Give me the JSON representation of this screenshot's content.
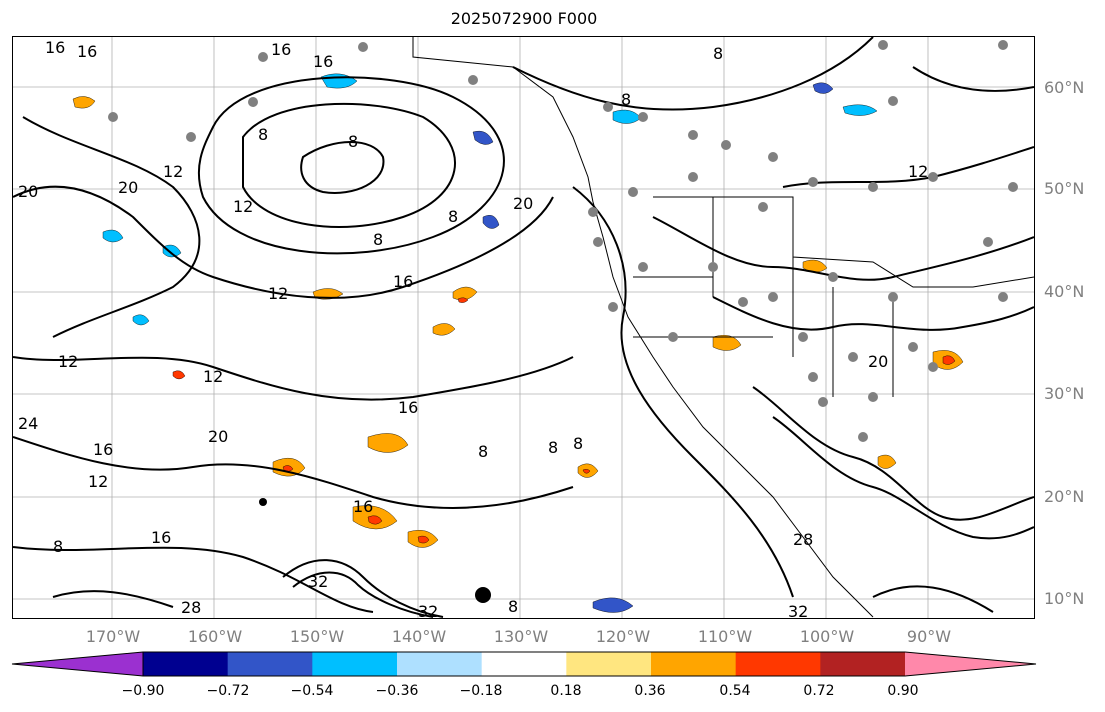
{
  "title": "2025072900 F000",
  "lat_labels": [
    "60°N",
    "50°N",
    "40°N",
    "30°N",
    "20°N",
    "10°N"
  ],
  "lon_labels": [
    "170°W",
    "160°W",
    "150°W",
    "140°W",
    "130°W",
    "120°W",
    "110°W",
    "100°W",
    "90°W"
  ],
  "colorbar": {
    "ticks": [
      "−0.90",
      "−0.72",
      "−0.54",
      "−0.36",
      "−0.18",
      "0.18",
      "0.36",
      "0.54",
      "0.72",
      "0.90"
    ],
    "colors": [
      "#9b30d0",
      "#000090",
      "#3255c8",
      "#00bfff",
      "#aee0ff",
      "#ffffff",
      "#ffe680",
      "#ffa500",
      "#ff3800",
      "#b22222",
      "#ff88aa"
    ]
  },
  "contour_labels": [
    "16",
    "16",
    "16",
    "16",
    "8",
    "8",
    "8",
    "8",
    "8",
    "8",
    "8",
    "12",
    "12",
    "12",
    "12",
    "12",
    "12",
    "20",
    "20",
    "20",
    "20",
    "24",
    "16",
    "16",
    "16",
    "16",
    "8",
    "8",
    "8",
    "8",
    "28",
    "28",
    "32",
    "32",
    "32",
    "16",
    "20",
    "12"
  ],
  "palette": {
    "contour": "#000000",
    "station_dot": "#808080",
    "grid": "#b0b0b0"
  }
}
